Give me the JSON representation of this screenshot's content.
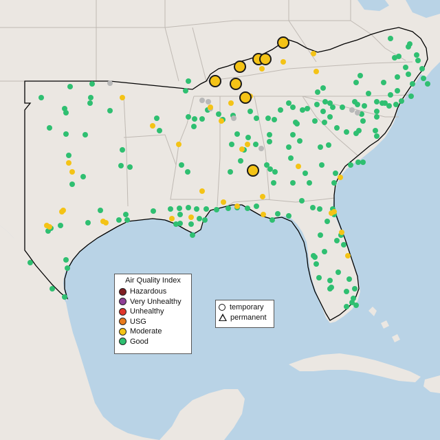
{
  "map": {
    "colors": {
      "water": "#b9d3e6",
      "land": "#ebe7e2",
      "state_border": "#bfb9b3",
      "region_outline": "#000000"
    }
  },
  "legend": {
    "title": "Air Quality Index",
    "categories": [
      {
        "label": "Hazardous",
        "color": "#7e1f23"
      },
      {
        "label": "Very Unhealthy",
        "color": "#8f3f97"
      },
      {
        "label": "Unhealthy",
        "color": "#e0362c"
      },
      {
        "label": "USG",
        "color": "#e87a1d"
      },
      {
        "label": "Moderate",
        "color": "#f4c316"
      },
      {
        "label": "Good",
        "color": "#2fbf71"
      }
    ],
    "no_data_color": "#b8b8b8"
  },
  "type_legend": {
    "temporary": "temporary",
    "permanent": "permanent"
  },
  "temporary_monitors": {
    "category": "Moderate",
    "count": 9
  }
}
